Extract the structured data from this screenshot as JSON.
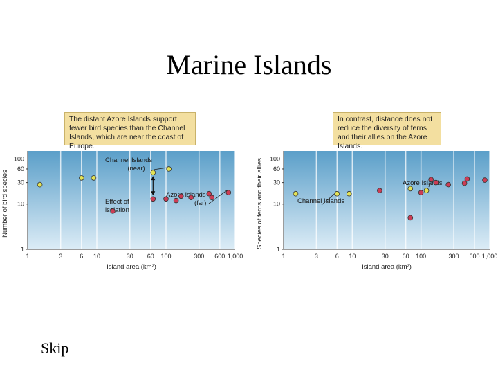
{
  "slide": {
    "title": "Marine Islands",
    "skip_label": "Skip"
  },
  "callouts": {
    "left": "The distant Azore Islands support fewer bird species than the Channel Islands, which are near the coast of Europe.",
    "right": "In contrast, distance does not reduce the diversity of ferns and their allies on the Azore Islands."
  },
  "colors": {
    "channel": "#e3e256",
    "azore": "#cc3d55",
    "plot_top": "#5b9fc9",
    "plot_bottom": "#dcecf6"
  },
  "chart_data": [
    {
      "type": "scatter",
      "title": "",
      "xlabel": "Island area (km²)",
      "ylabel": "Number of bird species",
      "x_scale": "log",
      "y_scale": "log",
      "xlim": [
        1,
        1000
      ],
      "ylim": [
        1,
        150
      ],
      "x_ticks": [
        1,
        3,
        6,
        10,
        30,
        60,
        100,
        300,
        600,
        1000
      ],
      "x_tick_labels": [
        "1",
        "3",
        "6",
        "10",
        "30",
        "60",
        "100",
        "300",
        "600",
        "1,000"
      ],
      "y_ticks": [
        1,
        10,
        30,
        60,
        100
      ],
      "y_tick_labels": [
        "1",
        "10",
        "30",
        "60",
        "100"
      ],
      "series": [
        {
          "name": "Channel Islands",
          "color": "#e3e256",
          "points": [
            [
              1.5,
              27
            ],
            [
              6,
              38
            ],
            [
              9,
              38
            ],
            [
              65,
              50
            ],
            [
              110,
              60
            ]
          ]
        },
        {
          "name": "Azore Islands",
          "color": "#cc3d55",
          "points": [
            [
              17,
              7
            ],
            [
              65,
              13
            ],
            [
              100,
              13
            ],
            [
              140,
              12
            ],
            [
              165,
              15
            ],
            [
              230,
              14
            ],
            [
              420,
              17
            ],
            [
              460,
              14
            ],
            [
              800,
              18
            ]
          ]
        }
      ],
      "annotations": {
        "channel_near": "Channel Islands (near)",
        "azore_far": "Azore Islands (far)",
        "isolation": "Effect of isolation"
      }
    },
    {
      "type": "scatter",
      "title": "",
      "xlabel": "Island area (km²)",
      "ylabel": "Species of ferns and their allies",
      "x_scale": "log",
      "y_scale": "log",
      "xlim": [
        1,
        1000
      ],
      "ylim": [
        1,
        150
      ],
      "x_ticks": [
        1,
        3,
        6,
        10,
        30,
        60,
        100,
        300,
        600,
        1000
      ],
      "x_tick_labels": [
        "1",
        "3",
        "6",
        "10",
        "30",
        "60",
        "100",
        "300",
        "600",
        "1,000"
      ],
      "y_ticks": [
        1,
        10,
        30,
        60,
        100
      ],
      "y_tick_labels": [
        "1",
        "10",
        "30",
        "60",
        "100"
      ],
      "series": [
        {
          "name": "Channel Islands",
          "color": "#e3e256",
          "points": [
            [
              1.5,
              17
            ],
            [
              6,
              17
            ],
            [
              9,
              17
            ],
            [
              70,
              22
            ],
            [
              120,
              20
            ]
          ]
        },
        {
          "name": "Azore Islands",
          "color": "#cc3d55",
          "points": [
            [
              25,
              20
            ],
            [
              70,
              5
            ],
            [
              100,
              18
            ],
            [
              140,
              35
            ],
            [
              165,
              30
            ],
            [
              250,
              27
            ],
            [
              430,
              29
            ],
            [
              470,
              36
            ],
            [
              850,
              34
            ]
          ]
        }
      ],
      "annotations": {
        "channel_label": "Channel Islands",
        "azore_label": "Azore Islands"
      }
    }
  ]
}
